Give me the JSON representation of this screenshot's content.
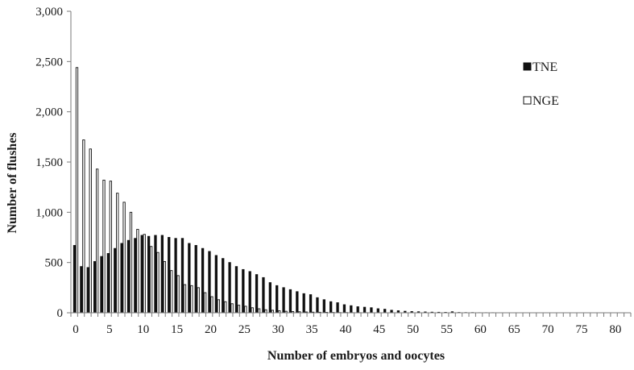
{
  "chart_data": {
    "type": "bar",
    "title": "",
    "xlabel": "Number of embryos and oocytes",
    "ylabel": "Number of flushes",
    "ylim": [
      0,
      3000
    ],
    "yticks": [
      0,
      500,
      1000,
      1500,
      2000,
      2500,
      3000
    ],
    "ytick_labels": [
      "0",
      "500",
      "1,000",
      "1,500",
      "2,000",
      "2,500",
      "3,000"
    ],
    "xlim": [
      0,
      83
    ],
    "xticks": [
      0,
      5,
      10,
      15,
      20,
      25,
      30,
      35,
      40,
      45,
      50,
      55,
      60,
      65,
      70,
      75,
      80
    ],
    "xtick_labels": [
      "0",
      "5",
      "10",
      "15",
      "20",
      "25",
      "30",
      "35",
      "40",
      "45",
      "50",
      "55",
      "60",
      "65",
      "70",
      "75",
      "80"
    ],
    "legend_position": "top-right",
    "grid": false,
    "series": [
      {
        "name": "TNE",
        "fill": "#111111",
        "values": [
          670,
          460,
          450,
          510,
          560,
          590,
          640,
          690,
          720,
          740,
          770,
          760,
          770,
          770,
          750,
          740,
          740,
          690,
          670,
          640,
          610,
          570,
          540,
          500,
          460,
          430,
          410,
          380,
          350,
          300,
          270,
          250,
          230,
          210,
          190,
          180,
          150,
          130,
          110,
          100,
          80,
          70,
          60,
          55,
          50,
          40,
          35,
          25,
          20,
          15,
          12,
          10,
          8,
          6,
          5,
          4,
          10,
          3,
          2,
          2,
          1,
          1,
          1,
          0,
          0,
          0,
          0,
          0,
          0,
          0,
          0,
          0,
          0,
          0,
          0,
          0,
          0,
          0,
          0,
          0,
          0,
          0,
          0
        ]
      },
      {
        "name": "NGE",
        "fill": "#ffffff",
        "values": [
          2440,
          1720,
          1630,
          1430,
          1320,
          1310,
          1190,
          1100,
          1000,
          830,
          780,
          660,
          600,
          510,
          420,
          370,
          280,
          270,
          250,
          200,
          160,
          130,
          110,
          90,
          75,
          65,
          50,
          40,
          30,
          25,
          20,
          15,
          12,
          10,
          8,
          6,
          5,
          4,
          3,
          2,
          2,
          1,
          1,
          1,
          0,
          0,
          0,
          0,
          0,
          0,
          0,
          0,
          0,
          0,
          0,
          0,
          0,
          0,
          0,
          0,
          0,
          0,
          0,
          0,
          0,
          0,
          0,
          0,
          0,
          0,
          0,
          0,
          0,
          0,
          0,
          0,
          0,
          0,
          0,
          0,
          0,
          0,
          0
        ]
      }
    ]
  }
}
